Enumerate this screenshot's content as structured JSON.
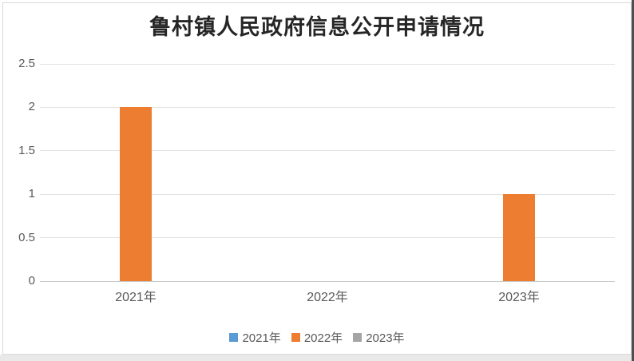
{
  "chart_data": {
    "type": "bar",
    "title": "鲁村镇人民政府信息公开申请情况",
    "xlabel": "",
    "ylabel": "",
    "categories": [
      "2021年",
      "2022年",
      "2023年"
    ],
    "series": [
      {
        "name": "2021年",
        "color": "#5B9BD5",
        "values": [
          0,
          0,
          0
        ]
      },
      {
        "name": "2022年",
        "color": "#ED7D31",
        "values": [
          2,
          0,
          1
        ]
      },
      {
        "name": "2023年",
        "color": "#A5A5A5",
        "values": [
          0,
          0,
          0
        ]
      }
    ],
    "ylim": [
      0,
      2.5
    ],
    "yticks": [
      0,
      0.5,
      1,
      1.5,
      2,
      2.5
    ],
    "ytick_labels": [
      "0",
      "0.5",
      "1",
      "1.5",
      "2",
      "2.5"
    ],
    "grid": true,
    "legend_position": "bottom",
    "visible_bars": [
      {
        "category": "2021年",
        "value": 2,
        "color": "#ED7D31"
      },
      {
        "category": "2023年",
        "value": 1,
        "color": "#ED7D31"
      }
    ]
  },
  "style": {
    "bar_fill": "#ED7D31",
    "gridline_color": "#e2e2e2",
    "axis_line_color": "#c9c9c9",
    "label_color": "#595959",
    "title_color": "#262626",
    "chart_border_color": "#d9d9d9"
  }
}
